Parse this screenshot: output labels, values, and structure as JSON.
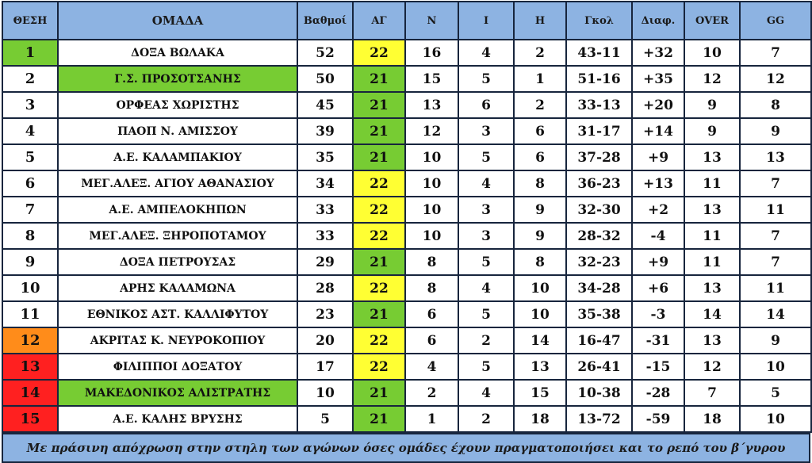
{
  "colors": {
    "header_bg": "#8db3e2",
    "grid_border": "#17253d",
    "green": "#77cc33",
    "yellow": "#ffff33",
    "orange": "#ff8c1a",
    "red": "#ff2020",
    "white": "#ffffff"
  },
  "headers": [
    "ΘΕΣΗ",
    "ΟΜΑΔΑ",
    "Βαθμοί",
    "ΑΓ",
    "Ν",
    "Ι",
    "Η",
    "Γκολ",
    "Διαφ.",
    "OVER",
    "GG"
  ],
  "rows": [
    {
      "pos": "1",
      "team": "ΔΟΞΑ ΒΩΛΑΚΑ",
      "pts": "52",
      "ag": "22",
      "n": "16",
      "i": "4",
      "h": "2",
      "goals": "43-11",
      "diff": "+32",
      "over": "10",
      "gg": "7",
      "pos_color": "green",
      "team_color": "white",
      "ag_color": "yellow"
    },
    {
      "pos": "2",
      "team": "Γ.Σ. ΠΡΟΣΟΤΣΑΝΗΣ",
      "pts": "50",
      "ag": "21",
      "n": "15",
      "i": "5",
      "h": "1",
      "goals": "51-16",
      "diff": "+35",
      "over": "12",
      "gg": "12",
      "pos_color": "white",
      "team_color": "green",
      "ag_color": "green"
    },
    {
      "pos": "3",
      "team": "ΟΡΦΕΑΣ ΧΩΡΙΣΤΗΣ",
      "pts": "45",
      "ag": "21",
      "n": "13",
      "i": "6",
      "h": "2",
      "goals": "33-13",
      "diff": "+20",
      "over": "9",
      "gg": "8",
      "pos_color": "white",
      "team_color": "white",
      "ag_color": "green"
    },
    {
      "pos": "4",
      "team": "ΠΑΟΠ Ν. ΑΜΙΣΣΟΥ",
      "pts": "39",
      "ag": "21",
      "n": "12",
      "i": "3",
      "h": "6",
      "goals": "31-17",
      "diff": "+14",
      "over": "9",
      "gg": "9",
      "pos_color": "white",
      "team_color": "white",
      "ag_color": "green"
    },
    {
      "pos": "5",
      "team": "Α.Ε. ΚΑΛΑΜΠΑΚΙΟΥ",
      "pts": "35",
      "ag": "21",
      "n": "10",
      "i": "5",
      "h": "6",
      "goals": "37-28",
      "diff": "+9",
      "over": "13",
      "gg": "13",
      "pos_color": "white",
      "team_color": "white",
      "ag_color": "green"
    },
    {
      "pos": "6",
      "team": "ΜΕΓ.ΑΛΕΞ. ΑΓΙΟΥ ΑΘΑΝΑΣΙΟΥ",
      "pts": "34",
      "ag": "22",
      "n": "10",
      "i": "4",
      "h": "8",
      "goals": "36-23",
      "diff": "+13",
      "over": "11",
      "gg": "7",
      "pos_color": "white",
      "team_color": "white",
      "ag_color": "yellow"
    },
    {
      "pos": "7",
      "team": "Α.Ε. ΑΜΠΕΛΟΚΗΠΩΝ",
      "pts": "33",
      "ag": "22",
      "n": "10",
      "i": "3",
      "h": "9",
      "goals": "32-30",
      "diff": "+2",
      "over": "13",
      "gg": "11",
      "pos_color": "white",
      "team_color": "white",
      "ag_color": "yellow"
    },
    {
      "pos": "8",
      "team": "ΜΕΓ.ΑΛΕΞ. ΞΗΡΟΠΟΤΑΜΟΥ",
      "pts": "33",
      "ag": "22",
      "n": "10",
      "i": "3",
      "h": "9",
      "goals": "28-32",
      "diff": "-4",
      "over": "11",
      "gg": "7",
      "pos_color": "white",
      "team_color": "white",
      "ag_color": "yellow"
    },
    {
      "pos": "9",
      "team": "ΔΟΞΑ ΠΕΤΡΟΥΣΑΣ",
      "pts": "29",
      "ag": "21",
      "n": "8",
      "i": "5",
      "h": "8",
      "goals": "32-23",
      "diff": "+9",
      "over": "11",
      "gg": "7",
      "pos_color": "white",
      "team_color": "white",
      "ag_color": "green"
    },
    {
      "pos": "10",
      "team": "ΑΡΗΣ ΚΑΛΑΜΩΝΑ",
      "pts": "28",
      "ag": "22",
      "n": "8",
      "i": "4",
      "h": "10",
      "goals": "34-28",
      "diff": "+6",
      "over": "13",
      "gg": "11",
      "pos_color": "white",
      "team_color": "white",
      "ag_color": "yellow"
    },
    {
      "pos": "11",
      "team": "ΕΘΝΙΚΟΣ ΑΣΤ. ΚΑΛΛΙΦΥΤΟΥ",
      "pts": "23",
      "ag": "21",
      "n": "6",
      "i": "5",
      "h": "10",
      "goals": "35-38",
      "diff": "-3",
      "over": "14",
      "gg": "14",
      "pos_color": "white",
      "team_color": "white",
      "ag_color": "green"
    },
    {
      "pos": "12",
      "team": "ΑΚΡΙΤΑΣ Κ. ΝΕΥΡΟΚΟΠΙΟΥ",
      "pts": "20",
      "ag": "22",
      "n": "6",
      "i": "2",
      "h": "14",
      "goals": "16-47",
      "diff": "-31",
      "over": "13",
      "gg": "9",
      "pos_color": "orange",
      "team_color": "white",
      "ag_color": "yellow"
    },
    {
      "pos": "13",
      "team": "ΦΙΛΙΠΠΟΙ ΔΟΞΑΤΟΥ",
      "pts": "17",
      "ag": "22",
      "n": "4",
      "i": "5",
      "h": "13",
      "goals": "26-41",
      "diff": "-15",
      "over": "12",
      "gg": "10",
      "pos_color": "red",
      "team_color": "white",
      "ag_color": "yellow"
    },
    {
      "pos": "14",
      "team": "ΜΑΚΕΔΟΝΙΚΟΣ ΑΛΙΣΤΡΑΤΗΣ",
      "pts": "10",
      "ag": "21",
      "n": "2",
      "i": "4",
      "h": "15",
      "goals": "10-38",
      "diff": "-28",
      "over": "7",
      "gg": "5",
      "pos_color": "red",
      "team_color": "green",
      "ag_color": "green"
    },
    {
      "pos": "15",
      "team": "Α.Ε. ΚΑΛΗΣ ΒΡΥΣΗΣ",
      "pts": "5",
      "ag": "21",
      "n": "1",
      "i": "2",
      "h": "18",
      "goals": "13-72",
      "diff": "-59",
      "over": "18",
      "gg": "10",
      "pos_color": "red",
      "team_color": "white",
      "ag_color": "green"
    }
  ],
  "footer": "Με πράσινη  απόχρωση στην στηλη των αγώνων όσες ομάδες έχουν πραγματοποιήσει και το ρεπό του β΄γυρου"
}
